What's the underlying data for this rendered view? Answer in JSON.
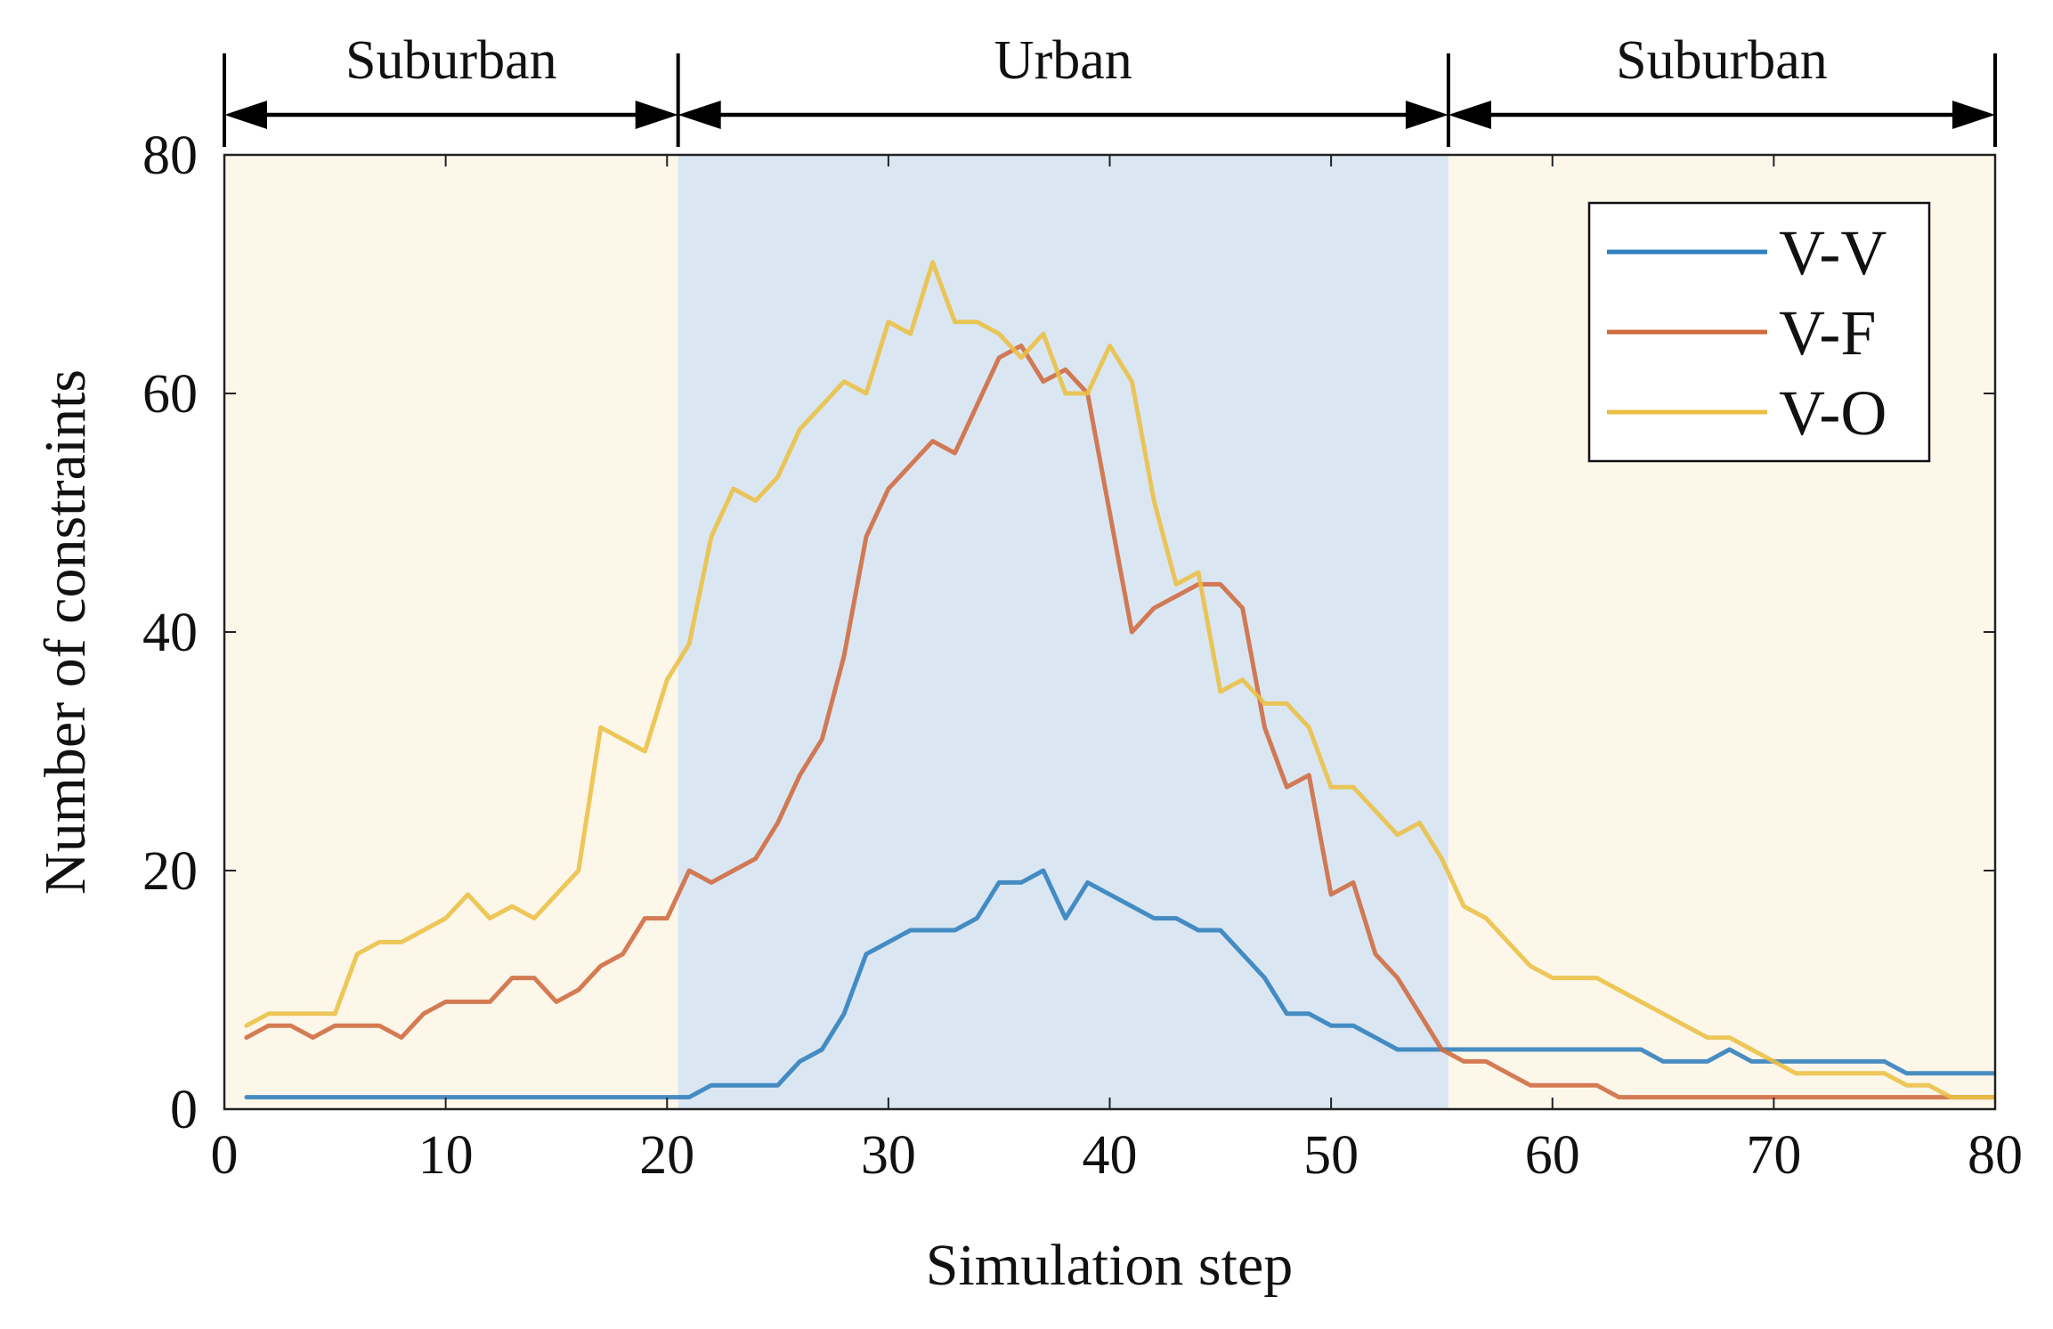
{
  "chart_data": {
    "type": "line",
    "title": "",
    "xlabel": "Simulation step",
    "ylabel": "Number of constraints",
    "xlim": [
      0,
      80
    ],
    "ylim": [
      0,
      80
    ],
    "xticks": [
      0,
      10,
      20,
      30,
      40,
      50,
      60,
      70,
      80
    ],
    "yticks": [
      0,
      20,
      40,
      60,
      80
    ],
    "x_tick_labels": [
      "0",
      "10",
      "20",
      "30",
      "40",
      "50",
      "60",
      "70",
      "80"
    ],
    "y_tick_labels": [
      "0",
      "20",
      "40",
      "60",
      "80"
    ],
    "grid": false,
    "legend_position": "top-right",
    "regions": [
      {
        "label": "Suburban",
        "x_start": 0,
        "x_end": 20.5,
        "color": "#fdf7ea"
      },
      {
        "label": "Urban",
        "x_start": 20.5,
        "x_end": 55.3,
        "color": "#dae7f3"
      },
      {
        "label": "Suburban",
        "x_start": 55.3,
        "x_end": 80,
        "color": "#fdf7ea"
      }
    ],
    "region_boundaries": [
      0,
      20.5,
      55.3,
      80
    ],
    "x": [
      1,
      2,
      3,
      4,
      5,
      6,
      7,
      8,
      9,
      10,
      11,
      12,
      13,
      14,
      15,
      16,
      17,
      18,
      19,
      20,
      21,
      22,
      23,
      24,
      25,
      26,
      27,
      28,
      29,
      30,
      31,
      32,
      33,
      34,
      35,
      36,
      37,
      38,
      39,
      40,
      41,
      42,
      43,
      44,
      45,
      46,
      47,
      48,
      49,
      50,
      51,
      52,
      53,
      54,
      55,
      56,
      57,
      58,
      59,
      60,
      61,
      62,
      63,
      64,
      65,
      66,
      67,
      68,
      69,
      70,
      71,
      72,
      73,
      74,
      75,
      76,
      77,
      78,
      79,
      80
    ],
    "series": [
      {
        "name": "V-V",
        "color": "#2f7ebc",
        "values": [
          1,
          1,
          1,
          1,
          1,
          1,
          1,
          1,
          1,
          1,
          1,
          1,
          1,
          1,
          1,
          1,
          1,
          1,
          1,
          1,
          1,
          2,
          2,
          2,
          2,
          4,
          5,
          8,
          13,
          14,
          15,
          15,
          15,
          16,
          19,
          19,
          20,
          16,
          19,
          18,
          17,
          16,
          16,
          15,
          15,
          13,
          11,
          8,
          8,
          7,
          7,
          6,
          5,
          5,
          5,
          5,
          5,
          5,
          5,
          5,
          5,
          5,
          5,
          5,
          4,
          4,
          4,
          5,
          4,
          4,
          4,
          4,
          4,
          4,
          4,
          3,
          3,
          3,
          3,
          3
        ]
      },
      {
        "name": "V-F",
        "color": "#cf6a3d",
        "values": [
          6,
          7,
          7,
          6,
          7,
          7,
          7,
          6,
          8,
          9,
          9,
          9,
          11,
          11,
          9,
          10,
          12,
          13,
          16,
          16,
          20,
          19,
          20,
          21,
          24,
          28,
          31,
          38,
          48,
          52,
          54,
          56,
          55,
          59,
          63,
          64,
          61,
          62,
          60,
          50,
          40,
          42,
          43,
          44,
          44,
          42,
          32,
          27,
          28,
          18,
          19,
          13,
          11,
          8,
          5,
          4,
          4,
          3,
          2,
          2,
          2,
          2,
          1,
          1,
          1,
          1,
          1,
          1,
          1,
          1,
          1,
          1,
          1,
          1,
          1,
          1,
          1,
          1,
          1,
          1
        ]
      },
      {
        "name": "V-O",
        "color": "#eac043",
        "values": [
          7,
          8,
          8,
          8,
          8,
          13,
          14,
          14,
          15,
          16,
          18,
          16,
          17,
          16,
          18,
          20,
          32,
          31,
          30,
          36,
          39,
          48,
          52,
          51,
          53,
          57,
          59,
          61,
          60,
          66,
          65,
          71,
          66,
          66,
          65,
          63,
          65,
          60,
          60,
          64,
          61,
          51,
          44,
          45,
          35,
          36,
          34,
          34,
          32,
          27,
          27,
          25,
          23,
          24,
          21,
          17,
          16,
          14,
          12,
          11,
          11,
          11,
          10,
          9,
          8,
          7,
          6,
          6,
          5,
          4,
          3,
          3,
          3,
          3,
          3,
          2,
          2,
          1,
          1,
          1
        ]
      }
    ]
  }
}
